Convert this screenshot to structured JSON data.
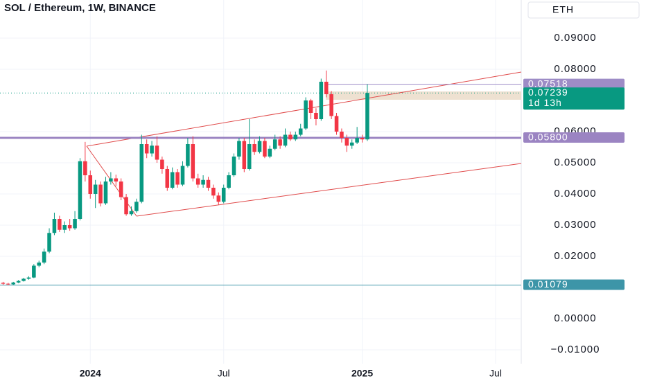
{
  "chart_data": {
    "type": "candlestick",
    "title": "SOL / Ethereum, 1W, BINANCE",
    "currency": "ETH",
    "up_color": "#089981",
    "down_color": "#f23645",
    "x": [
      -17,
      -16,
      -15,
      -14,
      -13,
      -12,
      -11,
      -10,
      -9,
      -8,
      -7,
      -6,
      -5,
      -4,
      -3,
      -2,
      -1,
      0,
      1,
      2,
      3,
      4,
      5,
      6,
      7,
      8,
      9,
      10,
      11,
      12,
      13,
      14,
      15,
      16,
      17,
      18,
      19,
      20,
      21,
      22,
      23,
      24,
      25,
      26,
      27,
      28,
      29,
      30,
      31,
      32,
      33,
      34,
      35,
      36,
      37,
      38,
      39,
      40,
      41,
      42,
      43,
      44,
      45,
      46,
      47,
      48,
      49,
      50,
      51,
      52,
      53,
      54
    ],
    "open": [
      0.0115,
      0.0112,
      0.011,
      0.0116,
      0.0121,
      0.0128,
      0.0132,
      0.017,
      0.018,
      0.0215,
      0.0275,
      0.032,
      0.0285,
      0.03,
      0.029,
      0.032,
      0.0505,
      0.046,
      0.04,
      0.043,
      0.037,
      0.044,
      0.045,
      0.044,
      0.039,
      0.0335,
      0.0345,
      0.0375,
      0.056,
      0.053,
      0.0555,
      0.051,
      0.048,
      0.042,
      0.047,
      0.043,
      0.049,
      0.056,
      0.045,
      0.043,
      0.0445,
      0.042,
      0.0395,
      0.0375,
      0.042,
      0.046,
      0.052,
      0.057,
      0.048,
      0.056,
      0.0535,
      0.057,
      0.052,
      0.0545,
      0.0575,
      0.0555,
      0.059,
      0.0575,
      0.059,
      0.061,
      0.07,
      0.066,
      0.064,
      0.076,
      0.072,
      0.065,
      0.06,
      0.058,
      0.0555,
      0.0565,
      0.058,
      0.0575
    ],
    "high": [
      0.0118,
      0.0115,
      0.0118,
      0.0124,
      0.0131,
      0.0136,
      0.0175,
      0.0186,
      0.0225,
      0.029,
      0.034,
      0.033,
      0.0312,
      0.032,
      0.0345,
      0.0515,
      0.0567,
      0.0475,
      0.0445,
      0.044,
      0.0455,
      0.047,
      0.0462,
      0.045,
      0.04,
      0.036,
      0.0385,
      0.059,
      0.0575,
      0.057,
      0.0585,
      0.052,
      0.049,
      0.0485,
      0.048,
      0.0505,
      0.058,
      0.0585,
      0.0465,
      0.046,
      0.0455,
      0.043,
      0.0405,
      0.043,
      0.047,
      0.053,
      0.058,
      0.058,
      0.064,
      0.0575,
      0.0585,
      0.058,
      0.0555,
      0.059,
      0.0585,
      0.061,
      0.06,
      0.06,
      0.0625,
      0.071,
      0.0705,
      0.0675,
      0.077,
      0.0796,
      0.073,
      0.066,
      0.061,
      0.059,
      0.0575,
      0.0615,
      0.059,
      0.0752
    ],
    "low": [
      0.0108,
      0.0107,
      0.0108,
      0.0114,
      0.0119,
      0.0125,
      0.013,
      0.0165,
      0.0175,
      0.021,
      0.0268,
      0.0278,
      0.0275,
      0.0282,
      0.0285,
      0.0315,
      0.044,
      0.0385,
      0.0355,
      0.036,
      0.0365,
      0.043,
      0.0425,
      0.038,
      0.033,
      0.033,
      0.034,
      0.037,
      0.0515,
      0.052,
      0.05,
      0.0465,
      0.041,
      0.0415,
      0.042,
      0.0425,
      0.0485,
      0.044,
      0.042,
      0.042,
      0.041,
      0.0385,
      0.0365,
      0.037,
      0.0415,
      0.0455,
      0.051,
      0.047,
      0.0475,
      0.0525,
      0.053,
      0.0515,
      0.0515,
      0.054,
      0.0545,
      0.055,
      0.057,
      0.057,
      0.0585,
      0.0605,
      0.064,
      0.062,
      0.0635,
      0.071,
      0.064,
      0.059,
      0.0565,
      0.0535,
      0.0545,
      0.056,
      0.0565,
      0.057
    ],
    "close": [
      0.0112,
      0.011,
      0.0116,
      0.0121,
      0.0128,
      0.0132,
      0.017,
      0.018,
      0.0215,
      0.0275,
      0.032,
      0.0285,
      0.03,
      0.029,
      0.032,
      0.0505,
      0.046,
      0.04,
      0.043,
      0.037,
      0.044,
      0.045,
      0.044,
      0.039,
      0.0335,
      0.0345,
      0.0375,
      0.056,
      0.053,
      0.0555,
      0.051,
      0.048,
      0.042,
      0.047,
      0.043,
      0.049,
      0.056,
      0.045,
      0.043,
      0.0445,
      0.042,
      0.0395,
      0.0375,
      0.042,
      0.046,
      0.052,
      0.057,
      0.048,
      0.056,
      0.0535,
      0.057,
      0.052,
      0.0545,
      0.0575,
      0.0555,
      0.059,
      0.0575,
      0.059,
      0.061,
      0.07,
      0.066,
      0.064,
      0.076,
      0.072,
      0.065,
      0.06,
      0.058,
      0.0555,
      0.0565,
      0.058,
      0.0575,
      0.0724
    ],
    "xlim": [
      -17.6,
      84
    ],
    "xticks": [
      {
        "value": 0,
        "label": "2024"
      },
      {
        "value": 26,
        "label": "Jul"
      },
      {
        "value": 53,
        "label": "2025"
      },
      {
        "value": 79,
        "label": "Jul"
      }
    ],
    "ylim": [
      -0.01444,
      0.10222
    ],
    "yticks": [
      {
        "value": 0.09,
        "label": "0.09000"
      },
      {
        "value": 0.08,
        "label": "0.08000"
      },
      {
        "value": 0.06,
        "label": "0.06000"
      },
      {
        "value": 0.05,
        "label": "0.05000"
      },
      {
        "value": 0.04,
        "label": "0.04000"
      },
      {
        "value": 0.03,
        "label": "0.03000"
      },
      {
        "value": 0.02,
        "label": "0.02000"
      },
      {
        "value": 0,
        "label": "0.00000"
      },
      {
        "value": -0.01,
        "label": "−0.01000"
      }
    ],
    "price_lines": [
      {
        "value": 0.07518,
        "label": "0.07518",
        "color": "#9d8cc6"
      },
      {
        "value": 0.07239,
        "label": "0.07239",
        "color": "#089981",
        "countdown": "1d 13h"
      },
      {
        "value": 0.058,
        "label": "0.05800",
        "color": "#9b84c2"
      },
      {
        "value": 0.01079,
        "label": "0.01079",
        "color": "#3d95a8"
      }
    ]
  }
}
